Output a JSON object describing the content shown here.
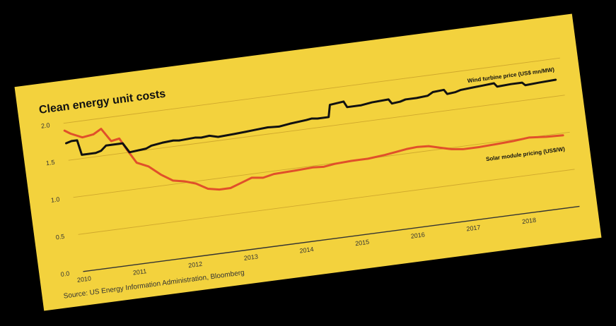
{
  "chart_data": {
    "type": "line",
    "title": "Clean energy unit costs",
    "xlabel": "",
    "ylabel": "",
    "xlim": [
      2010,
      2018.8
    ],
    "ylim": [
      0,
      2.0
    ],
    "yticks": [
      0.0,
      0.5,
      1.0,
      1.5,
      2.0
    ],
    "ytick_labels": [
      "0.0",
      "0.5",
      "1.0",
      "1.5",
      "2.0"
    ],
    "xticks": [
      2010,
      2011,
      2012,
      2013,
      2014,
      2015,
      2016,
      2017,
      2018
    ],
    "xtick_labels": [
      "2010",
      "2011",
      "2012",
      "2013",
      "2014",
      "2015",
      "2016",
      "2017",
      "2018"
    ],
    "grid": true,
    "source": "Source: US Energy Information Administration, Bloomberg",
    "series": [
      {
        "name": "Wind turbine price (US$ mn/MW)",
        "color": "#111111",
        "x": [
          2010.0,
          2010.1,
          2010.2,
          2010.25,
          2010.5,
          2010.6,
          2010.7,
          2011.0,
          2011.1,
          2011.4,
          2011.5,
          2011.7,
          2011.9,
          2012.0,
          2012.3,
          2012.4,
          2012.55,
          2012.7,
          2013.0,
          2013.2,
          2013.4,
          2013.6,
          2013.8,
          2014.0,
          2014.3,
          2014.4,
          2014.5,
          2014.7,
          2014.75,
          2015.0,
          2015.05,
          2015.3,
          2015.5,
          2015.8,
          2015.85,
          2016.0,
          2016.1,
          2016.3,
          2016.5,
          2016.6,
          2016.8,
          2016.85,
          2017.0,
          2017.1,
          2017.3,
          2017.5,
          2017.7,
          2017.75,
          2018.0,
          2018.2,
          2018.25,
          2018.5,
          2018.8
        ],
        "y": [
          1.73,
          1.75,
          1.75,
          1.55,
          1.55,
          1.57,
          1.63,
          1.63,
          1.5,
          1.52,
          1.55,
          1.57,
          1.58,
          1.57,
          1.58,
          1.57,
          1.58,
          1.55,
          1.56,
          1.57,
          1.58,
          1.59,
          1.58,
          1.6,
          1.62,
          1.63,
          1.62,
          1.62,
          1.78,
          1.8,
          1.72,
          1.72,
          1.74,
          1.75,
          1.69,
          1.7,
          1.72,
          1.72,
          1.73,
          1.77,
          1.78,
          1.72,
          1.73,
          1.75,
          1.76,
          1.77,
          1.78,
          1.73,
          1.74,
          1.74,
          1.7,
          1.71,
          1.72
        ]
      },
      {
        "name": "Solar module pricing (US$/W)",
        "color": "#e0502a",
        "x": [
          2010.0,
          2010.1,
          2010.3,
          2010.5,
          2010.65,
          2010.8,
          2010.95,
          2011.05,
          2011.2,
          2011.4,
          2011.6,
          2011.8,
          2012.0,
          2012.2,
          2012.4,
          2012.6,
          2012.8,
          2013.0,
          2013.2,
          2013.4,
          2013.6,
          2014.0,
          2014.3,
          2014.5,
          2014.7,
          2015.0,
          2015.3,
          2015.6,
          2015.8,
          2016.0,
          2016.2,
          2016.4,
          2016.6,
          2016.8,
          2017.0,
          2017.3,
          2017.6,
          2017.9,
          2018.2,
          2018.5,
          2018.8
        ],
        "y": [
          1.9,
          1.85,
          1.78,
          1.8,
          1.86,
          1.68,
          1.7,
          1.55,
          1.35,
          1.28,
          1.15,
          1.05,
          1.02,
          0.97,
          0.88,
          0.85,
          0.85,
          0.9,
          0.95,
          0.93,
          0.96,
          0.97,
          0.98,
          0.97,
          0.99,
          1.0,
          1.0,
          1.02,
          1.04,
          1.06,
          1.07,
          1.06,
          1.02,
          0.98,
          0.96,
          0.96,
          0.97,
          0.98,
          1.0,
          0.98,
          0.97
        ]
      }
    ]
  }
}
